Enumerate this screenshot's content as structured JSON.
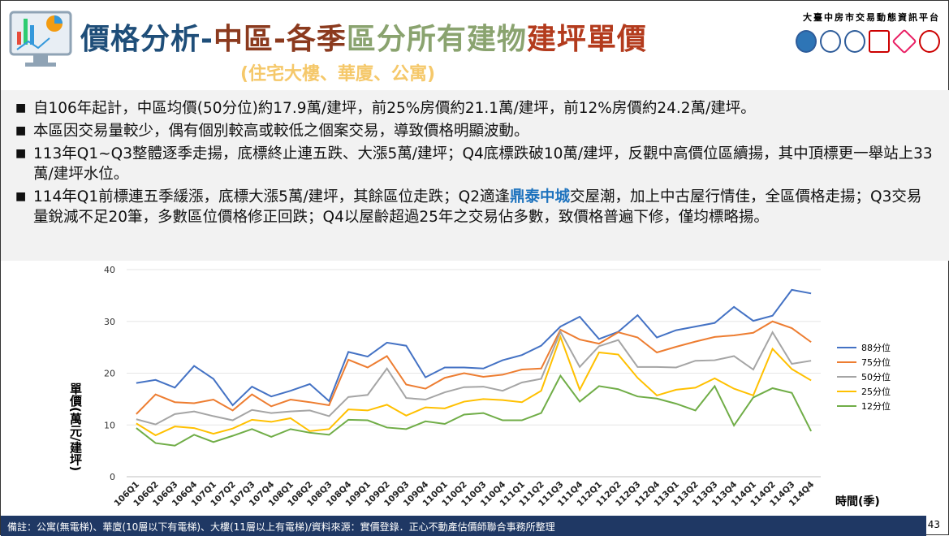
{
  "header": {
    "title_a": "價格分析-",
    "title_b": "中區-各季",
    "title_c": "區分所有建物",
    "title_d": "建坪單價",
    "subtitle": "(住宅大樓、華廈、公寓)",
    "platform": "大臺中房市交易動態資訊平台"
  },
  "bullets": [
    {
      "text": "自106年起計，中區均價(50分位)約17.9萬/建坪，前25%房價約21.1萬/建坪，前12%房價約24.2萬/建坪。"
    },
    {
      "text": "本區因交易量較少，偶有個別較高或較低之個案交易，導致價格明顯波動。"
    },
    {
      "text": "113年Q1~Q3整體逐季走揚，底標終止連五跌、大漲5萬/建坪；Q4底標跌破10萬/建坪，反觀中高價位區續揚，其中頂標更一舉站上33萬/建坪水位。"
    },
    {
      "pre": "114年Q1前標連五季緩漲，底標大漲5萬/建坪，其餘區位走跌；Q2適逢",
      "hl": "鼎泰中城",
      "post": "交屋潮，加上中古屋行情佳，全區價格走揚；Q3交易量銳減不足20筆，多數區位價格修正回跌；Q4以屋齡超過25年之交易佔多數，致價格普遍下修，僅均標略揚。"
    }
  ],
  "chart_data": {
    "type": "line",
    "ylabel": "單價(萬元/建坪)",
    "xlabel": "時間(季)",
    "ylim": [
      0,
      40
    ],
    "yticks": [
      0,
      10,
      20,
      30,
      40
    ],
    "legend": "right",
    "categories": [
      "106Q1",
      "106Q2",
      "106Q3",
      "106Q4",
      "107Q1",
      "107Q2",
      "107Q3",
      "107Q4",
      "108Q1",
      "108Q2",
      "108Q3",
      "108Q4",
      "109Q1",
      "109Q2",
      "109Q3",
      "109Q4",
      "110Q1",
      "110Q2",
      "110Q3",
      "110Q4",
      "111Q1",
      "111Q2",
      "111Q3",
      "111Q4",
      "112Q1",
      "112Q2",
      "112Q3",
      "112Q4",
      "113Q1",
      "113Q2",
      "113Q3",
      "113Q4",
      "114Q1",
      "114Q2",
      "114Q3",
      "114Q4"
    ],
    "series": [
      {
        "name": "88分位",
        "color": "#4472c4",
        "values": [
          18.1,
          18.7,
          17.2,
          21.4,
          18.9,
          13.8,
          17.4,
          15.5,
          16.6,
          17.9,
          14.6,
          24.1,
          23.2,
          25.9,
          25.3,
          19.2,
          21.1,
          21.1,
          20.9,
          22.5,
          23.5,
          25.3,
          29.0,
          30.9,
          26.6,
          28.0,
          31.2,
          26.9,
          28.3,
          29.0,
          29.7,
          32.8,
          30.1,
          31.1,
          36.1,
          35.4
        ]
      },
      {
        "name": "75分位",
        "color": "#ed7d31",
        "values": [
          12.1,
          15.9,
          14.4,
          14.2,
          14.9,
          12.8,
          15.9,
          13.6,
          14.9,
          14.4,
          13.8,
          22.6,
          21.1,
          23.3,
          17.8,
          17.0,
          19.1,
          20.0,
          19.3,
          19.7,
          20.7,
          20.9,
          28.4,
          26.5,
          25.7,
          27.9,
          26.9,
          24.0,
          25.1,
          26.1,
          27.0,
          27.3,
          27.8,
          30.0,
          28.7,
          26.0
        ]
      },
      {
        "name": "50分位",
        "color": "#a5a5a5",
        "values": [
          11.1,
          10.1,
          12.1,
          12.6,
          11.7,
          10.9,
          12.9,
          12.3,
          12.6,
          12.8,
          11.7,
          15.4,
          15.8,
          20.9,
          15.2,
          14.9,
          16.3,
          17.3,
          17.4,
          16.6,
          18.2,
          18.9,
          28.0,
          21.2,
          25.2,
          26.4,
          21.2,
          21.2,
          21.1,
          22.4,
          22.5,
          23.3,
          20.7,
          27.9,
          21.8,
          22.4
        ]
      },
      {
        "name": "25分位",
        "color": "#ffc000",
        "values": [
          10.3,
          8.0,
          9.7,
          9.4,
          8.3,
          9.3,
          11.0,
          10.6,
          11.3,
          8.8,
          9.2,
          13.0,
          12.8,
          13.9,
          11.8,
          13.4,
          13.2,
          14.5,
          15.0,
          14.8,
          14.4,
          16.6,
          27.0,
          16.8,
          24.0,
          23.6,
          19.1,
          15.7,
          16.8,
          17.2,
          19.0,
          17.0,
          15.7,
          24.7,
          20.8,
          18.6
        ]
      },
      {
        "name": "12分位",
        "color": "#70ad47",
        "values": [
          9.4,
          6.5,
          6.0,
          8.1,
          6.7,
          7.9,
          9.2,
          7.7,
          9.2,
          8.5,
          8.1,
          11.0,
          10.9,
          9.5,
          9.2,
          10.7,
          10.2,
          12.0,
          12.3,
          10.9,
          10.9,
          12.3,
          19.5,
          14.5,
          17.5,
          16.9,
          15.5,
          15.1,
          14.1,
          12.8,
          17.5,
          9.9,
          15.3,
          17.1,
          16.2,
          8.8
        ]
      }
    ]
  },
  "footer": {
    "note": "備註：公寓(無電梯)、華廈(10層以下有電梯)、大樓(11層以上有電梯)/資料來源：實價登錄．正心不動產估價師聯合事務所整理",
    "page": "43"
  }
}
